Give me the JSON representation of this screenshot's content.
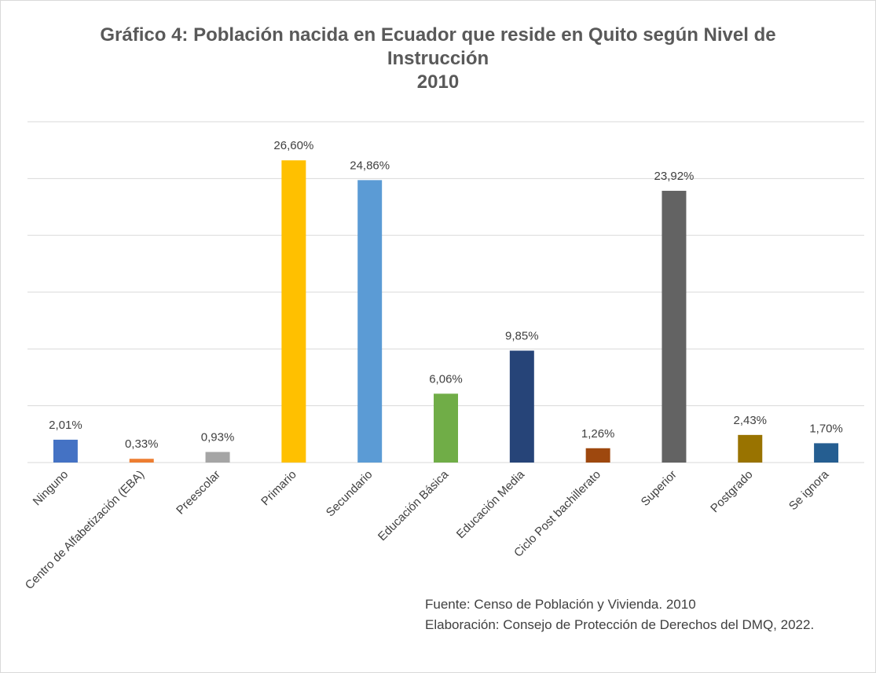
{
  "chart_data": {
    "type": "bar",
    "title": "Gráfico 4: Población nacida en Ecuador que reside en Quito según Nivel de Instrucción",
    "subtitle": "2010",
    "categories": [
      "Ninguno",
      "Centro de Alfabetización (EBA)",
      "Preescolar",
      "Primario",
      "Secundario",
      "Educación Básica",
      "Educación Media",
      "Ciclo Post bachillerato",
      "Superior",
      "Postgrado",
      "Se ignora"
    ],
    "values": [
      2.01,
      0.33,
      0.93,
      26.6,
      24.86,
      6.06,
      9.85,
      1.26,
      23.92,
      2.43,
      1.7
    ],
    "value_labels": [
      "2,01%",
      "0,33%",
      "0,93%",
      "26,60%",
      "24,86%",
      "6,06%",
      "9,85%",
      "1,26%",
      "23,92%",
      "2,43%",
      "1,70%"
    ],
    "colors": [
      "#4472c4",
      "#ed7d31",
      "#a5a5a5",
      "#ffc000",
      "#5b9bd5",
      "#70ad47",
      "#264478",
      "#9e480e",
      "#636363",
      "#997300",
      "#255e91"
    ],
    "ylim": [
      0,
      30
    ],
    "yticks": [
      0,
      5,
      10,
      15,
      20,
      25,
      30
    ],
    "grid": true,
    "notes": [
      "Fuente: Censo de Población y Vivienda. 2010",
      "Elaboración: Consejo de Protección de Derechos del DMQ, 2022."
    ]
  }
}
